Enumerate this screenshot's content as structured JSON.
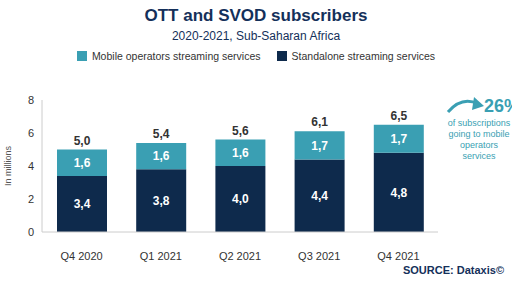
{
  "chart_data": {
    "type": "bar",
    "title": "OTT and SVOD subscribers",
    "subtitle": "2020-2021, Sub-Saharan Africa",
    "y_label": "In millions",
    "categories": [
      "Q4 2020",
      "Q1 2021",
      "Q2 2021",
      "Q3 2021",
      "Q4 2021"
    ],
    "series": [
      {
        "name": "Standalone streaming services",
        "color": "#0e2a4c",
        "values": [
          3.4,
          3.8,
          4.0,
          4.4,
          4.8
        ],
        "value_labels": [
          "3,4",
          "3,8",
          "4,0",
          "4,4",
          "4,8"
        ]
      },
      {
        "name": "Mobile operators streaming services",
        "color": "#3a9fb3",
        "values": [
          1.6,
          1.6,
          1.6,
          1.7,
          1.7
        ],
        "value_labels": [
          "1,6",
          "1,6",
          "1,6",
          "1,7",
          "1,7"
        ]
      }
    ],
    "total_values": [
      5.0,
      5.4,
      5.6,
      6.1,
      6.5
    ],
    "total_labels": [
      "5,0",
      "5,4",
      "5,6",
      "6,1",
      "6,5"
    ],
    "ylim": [
      0,
      8
    ],
    "yticks": [
      0,
      2,
      4,
      6,
      8
    ],
    "stacked": true,
    "data_labels": true,
    "grid": false,
    "legend": "top",
    "annotations": [
      {
        "value": 26,
        "label": "26%",
        "text": "of subscriptions going to mobile operators services"
      }
    ],
    "source": "SOURCE: Dataxis©"
  }
}
